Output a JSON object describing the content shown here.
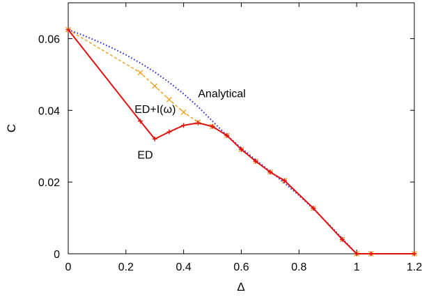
{
  "chart_data": {
    "type": "line",
    "xlabel": "Δ",
    "ylabel": "C",
    "xlim": [
      0,
      1.2
    ],
    "ylim": [
      0,
      0.07
    ],
    "x_ticks": [
      0,
      0.2,
      0.4,
      0.6,
      0.8,
      1,
      1.2
    ],
    "x_tick_labels": [
      "0",
      "0.2",
      "0.4",
      "0.6",
      "0.8",
      "1",
      "1.2"
    ],
    "y_ticks": [
      0,
      0.02,
      0.04,
      0.06
    ],
    "y_tick_labels": [
      "0",
      "0.02",
      "0.04",
      "0.06"
    ],
    "grid": false,
    "series": [
      {
        "name": "Analytical",
        "color": "#1a1adb",
        "style": "dotted",
        "marker": "none",
        "x": [
          0,
          0.05,
          0.1,
          0.15,
          0.2,
          0.25,
          0.3,
          0.35,
          0.4,
          0.45,
          0.5,
          0.55,
          0.6,
          0.65,
          0.7,
          0.75,
          0.8,
          0.85,
          0.9,
          0.95,
          1.0,
          1.05,
          1.1,
          1.15,
          1.2
        ],
        "y": [
          0.0625,
          0.061,
          0.0593,
          0.0575,
          0.0555,
          0.0532,
          0.0507,
          0.0478,
          0.0446,
          0.041,
          0.037,
          0.033,
          0.0295,
          0.0262,
          0.023,
          0.0197,
          0.0163,
          0.0125,
          0.0085,
          0.0043,
          0.0,
          0.0,
          0.0,
          0.0,
          0.0
        ]
      },
      {
        "name": "ED+I(ω)",
        "color": "#f0a020",
        "style": "dashed",
        "marker": "x",
        "x": [
          0,
          0.25,
          0.3,
          0.35,
          0.4,
          0.45,
          0.5,
          0.55,
          0.6,
          0.65,
          0.7,
          0.75,
          0.85,
          0.95,
          1.0,
          1.05,
          1.2
        ],
        "y": [
          0.0625,
          0.0505,
          0.0468,
          0.043,
          0.0395,
          0.0367,
          0.0355,
          0.033,
          0.0291,
          0.0258,
          0.0228,
          0.0204,
          0.0127,
          0.004,
          0.0,
          0.0,
          0.0
        ]
      },
      {
        "name": "ED",
        "color": "#e01010",
        "style": "solid",
        "marker": "+",
        "x": [
          0,
          0.25,
          0.3,
          0.35,
          0.4,
          0.45,
          0.5,
          0.55,
          0.6,
          0.65,
          0.7,
          0.75,
          0.85,
          0.95,
          1.0,
          1.05,
          1.2
        ],
        "y": [
          0.0625,
          0.037,
          0.032,
          0.034,
          0.0358,
          0.0365,
          0.0355,
          0.033,
          0.0291,
          0.0258,
          0.0228,
          0.0204,
          0.0127,
          0.004,
          0.0,
          0.0,
          0.0
        ]
      }
    ],
    "annotations": [
      {
        "text": "Analytical",
        "x": 0.45,
        "y": 0.0437
      },
      {
        "text": "ED+I(ω)",
        "x": 0.23,
        "y": 0.0393
      },
      {
        "text": "ED",
        "x": 0.24,
        "y": 0.0265
      }
    ]
  }
}
